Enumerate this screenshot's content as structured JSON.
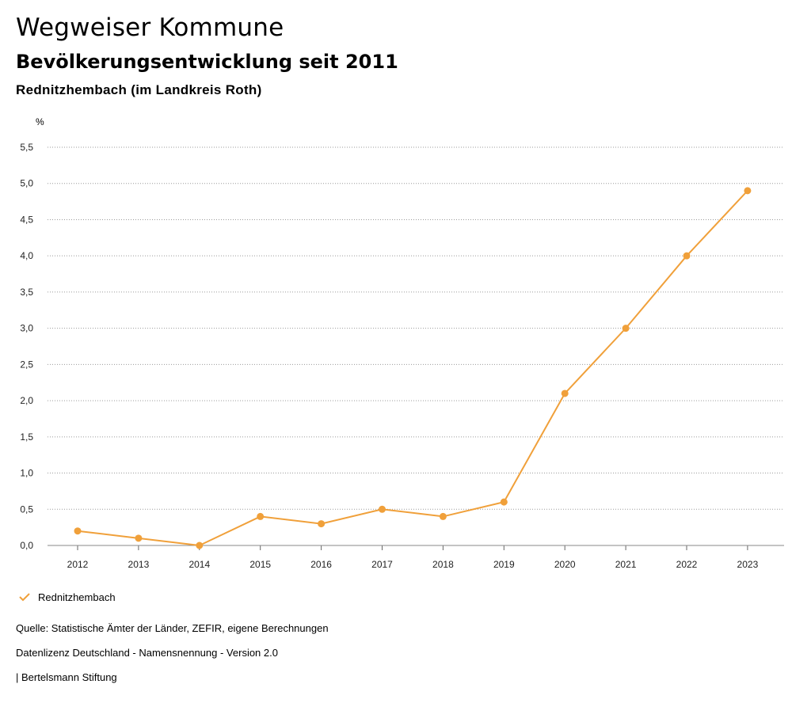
{
  "header": {
    "title": "Wegweiser Kommune",
    "subtitle": "Bevölkerungsentwicklung seit 2011",
    "region": "Rednitzhembach (im Landkreis Roth)"
  },
  "colors": {
    "series": "#f0a03a",
    "grid": "#9a9a9a",
    "axis": "#666666"
  },
  "chart_data": {
    "type": "line",
    "title": "Bevölkerungsentwicklung seit 2011",
    "ylabel": "%",
    "xlabel": "",
    "ylim": [
      0,
      5.5
    ],
    "yticks": [
      "0,0",
      "0,5",
      "1,0",
      "1,5",
      "2,0",
      "2,5",
      "3,0",
      "3,5",
      "4,0",
      "4,5",
      "5,0",
      "5,5"
    ],
    "ytick_values": [
      0,
      0.5,
      1.0,
      1.5,
      2.0,
      2.5,
      3.0,
      3.5,
      4.0,
      4.5,
      5.0,
      5.5
    ],
    "categories": [
      "2012",
      "2013",
      "2014",
      "2015",
      "2016",
      "2017",
      "2018",
      "2019",
      "2020",
      "2021",
      "2022",
      "2023"
    ],
    "series": [
      {
        "name": "Rednitzhembach",
        "values": [
          0.2,
          0.1,
          0.0,
          0.4,
          0.3,
          0.5,
          0.4,
          0.6,
          2.1,
          3.0,
          4.0,
          4.9
        ]
      }
    ],
    "grid": true,
    "legend": "bottom-left"
  },
  "legend": {
    "label": "Rednitzhembach"
  },
  "footer": {
    "source": "Quelle: Statistische Ämter der Länder, ZEFIR, eigene Berechnungen",
    "license": "Datenlizenz Deutschland - Namensnennung - Version 2.0",
    "publisher": "| Bertelsmann Stiftung"
  }
}
